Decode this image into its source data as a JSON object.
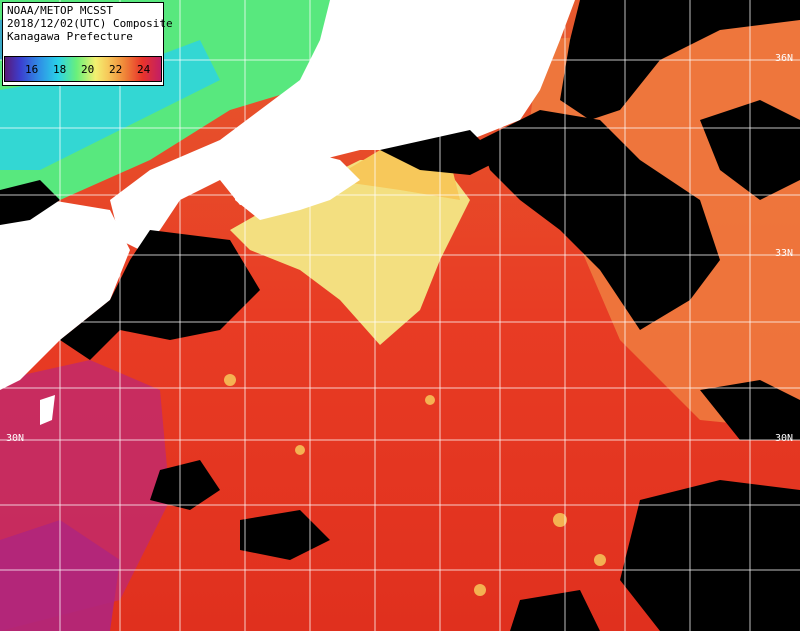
{
  "header": {
    "line1": "NOAA/METOP MCSST",
    "line2": "2018/12/02(UTC) Composite",
    "line3": "Kanagawa Prefecture"
  },
  "colorbar": {
    "ticks": [
      "16",
      "18",
      "20",
      "22",
      "24"
    ],
    "colors": [
      "#5a1a78",
      "#3b3fd0",
      "#2f8fe6",
      "#2ad2e8",
      "#6af07a",
      "#f3f070",
      "#f7c85a",
      "#f08a3a",
      "#e8342a",
      "#c21e66"
    ]
  },
  "latitude_labels": {
    "lat36": "36N",
    "lat33": "33N",
    "lat30_left": "30N",
    "lat30_right": "30N"
  }
}
